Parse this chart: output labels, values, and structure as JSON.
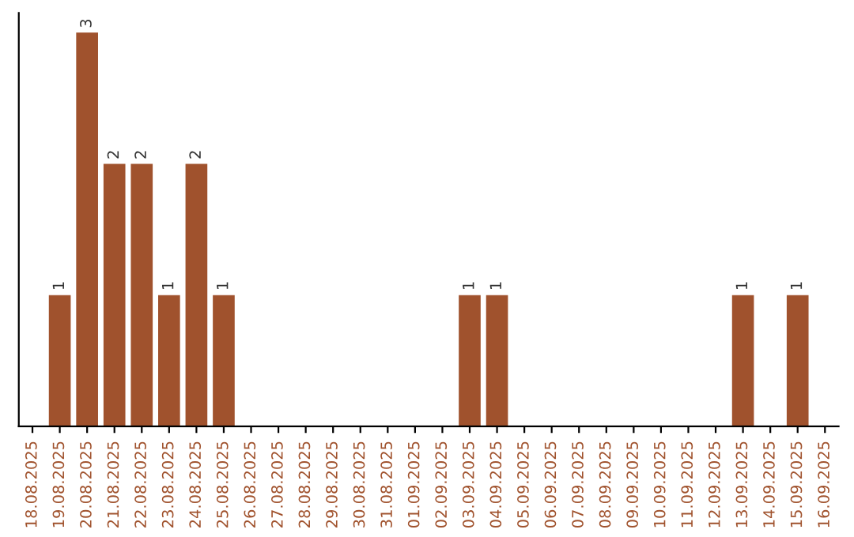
{
  "chart_data": {
    "type": "bar",
    "categories": [
      "18.08.2025",
      "19.08.2025",
      "20.08.2025",
      "21.08.2025",
      "22.08.2025",
      "23.08.2025",
      "24.08.2025",
      "25.08.2025",
      "26.08.2025",
      "27.08.2025",
      "28.08.2025",
      "29.08.2025",
      "30.08.2025",
      "31.08.2025",
      "01.09.2025",
      "02.09.2025",
      "03.09.2025",
      "04.09.2025",
      "05.09.2025",
      "06.09.2025",
      "07.09.2025",
      "08.09.2025",
      "09.09.2025",
      "10.09.2025",
      "11.09.2025",
      "12.09.2025",
      "13.09.2025",
      "14.09.2025",
      "15.09.2025",
      "16.09.2025"
    ],
    "values": [
      0,
      1,
      3,
      2,
      2,
      1,
      2,
      1,
      0,
      0,
      0,
      0,
      0,
      0,
      0,
      0,
      1,
      1,
      0,
      0,
      0,
      0,
      0,
      0,
      0,
      0,
      1,
      0,
      1,
      0
    ],
    "value_labels": [
      null,
      "1",
      "3",
      "2",
      "2",
      "1",
      "2",
      "1",
      null,
      null,
      null,
      null,
      null,
      null,
      null,
      null,
      "1",
      "1",
      null,
      null,
      null,
      null,
      null,
      null,
      null,
      null,
      "1",
      null,
      "1",
      null
    ],
    "color": "#a0522d",
    "tick_labels": "x",
    "grid": false,
    "legend": false
  }
}
